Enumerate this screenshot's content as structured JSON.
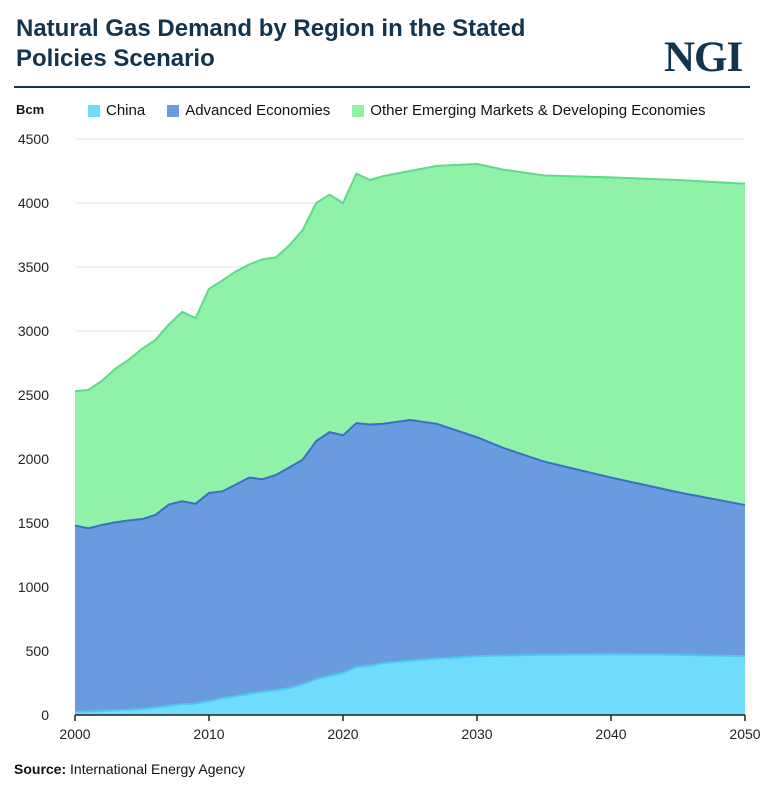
{
  "header": {
    "title": "Natural Gas Demand by Region in the Stated Policies Scenario",
    "logo": "NGI"
  },
  "footer": {
    "source_label": "Source:",
    "source_text": "International Energy Agency"
  },
  "colors": {
    "china": "#6fdcfb",
    "advanced": "#6a9bdf",
    "other": "#8ff2a8",
    "china_line": "#4fc7f0",
    "advanced_line": "#3a6fc4",
    "other_line": "#5fd98a",
    "title": "#12344d"
  },
  "chart_data": {
    "type": "area",
    "stacked": true,
    "title": "Natural Gas Demand by Region in the Stated Policies Scenario",
    "ylabel": "Bcm",
    "xlabel": "",
    "xlim": [
      2000,
      2050
    ],
    "ylim": [
      0,
      4500
    ],
    "xticks": [
      2000,
      2010,
      2020,
      2030,
      2040,
      2050
    ],
    "yticks": [
      0,
      500,
      1000,
      1500,
      2000,
      2500,
      3000,
      3500,
      4000,
      4500
    ],
    "grid": true,
    "legend_position": "top",
    "x": [
      2000,
      2001,
      2002,
      2003,
      2004,
      2005,
      2006,
      2007,
      2008,
      2009,
      2010,
      2011,
      2012,
      2013,
      2014,
      2015,
      2016,
      2017,
      2018,
      2019,
      2020,
      2021,
      2022,
      2023,
      2025,
      2027,
      2030,
      2032,
      2035,
      2040,
      2045,
      2050
    ],
    "series": [
      {
        "name": "China",
        "values": [
          25,
          28,
          30,
          35,
          40,
          47,
          58,
          72,
          84,
          90,
          108,
          132,
          148,
          165,
          182,
          195,
          210,
          240,
          280,
          305,
          330,
          375,
          385,
          405,
          425,
          440,
          460,
          465,
          470,
          475,
          470,
          460
        ]
      },
      {
        "name": "Advanced Economies",
        "values": [
          1455,
          1430,
          1455,
          1470,
          1480,
          1483,
          1505,
          1572,
          1586,
          1560,
          1627,
          1615,
          1652,
          1690,
          1660,
          1680,
          1725,
          1755,
          1860,
          1905,
          1855,
          1905,
          1885,
          1870,
          1880,
          1835,
          1710,
          1620,
          1510,
          1380,
          1270,
          1180
        ]
      },
      {
        "name": "Other Emerging Markets & Developing Economies",
        "values": [
          1050,
          1082,
          1125,
          1200,
          1255,
          1330,
          1367,
          1406,
          1480,
          1450,
          1595,
          1648,
          1665,
          1665,
          1718,
          1700,
          1735,
          1795,
          1860,
          1855,
          1815,
          1950,
          1910,
          1935,
          1945,
          2015,
          2135,
          2175,
          2235,
          2345,
          2440,
          2510
        ]
      }
    ]
  }
}
